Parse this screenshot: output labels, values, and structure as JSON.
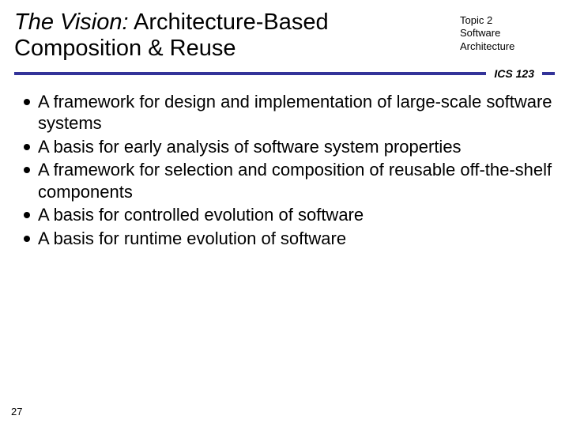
{
  "header": {
    "title_italic": "The Vision:",
    "title_rest": "  Architecture-Based Composition & Reuse",
    "topic_line1": "Topic 2",
    "topic_line2": "Software",
    "topic_line3": "Architecture",
    "course_code": "ICS 123"
  },
  "bullets": [
    "A framework for design and implementation of large-scale software systems",
    "A basis for early analysis of software system properties",
    "A framework for selection and composition of reusable off-the-shelf components",
    "A basis for controlled evolution of software",
    "A basis for runtime evolution of software"
  ],
  "page_number": "27",
  "colors": {
    "accent": "#333399",
    "text": "#000000",
    "background": "#ffffff"
  },
  "typography": {
    "title_fontsize": 29,
    "topic_fontsize": 13,
    "course_fontsize": 14,
    "bullet_fontsize": 22,
    "pagenum_fontsize": 13
  }
}
